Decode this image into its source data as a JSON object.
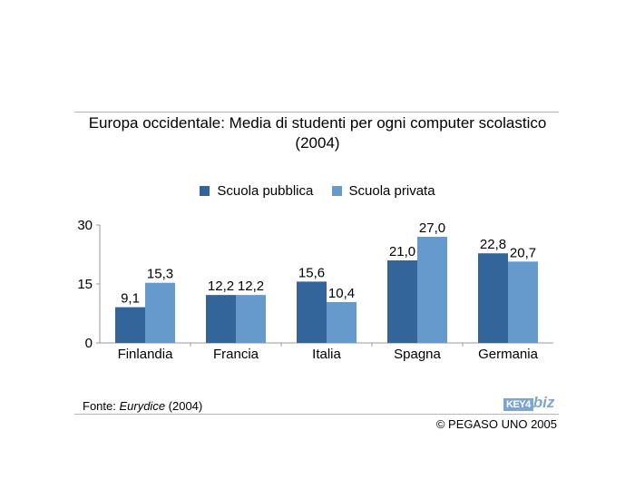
{
  "title": {
    "line1": "Europa occidentale: Media di studenti per ogni computer scolastico",
    "line2": "(2004)"
  },
  "footer": {
    "source_prefix": "Fonte: ",
    "source_name": "Eurydice",
    "source_suffix": " (2004)",
    "copyright": "© PEGASO UNO 2005",
    "logo_text_key": "KEY4",
    "logo_text_biz": "biz"
  },
  "colors": {
    "pubblica": "#33659a",
    "privata": "#6699cc",
    "logo": "#7ea6cc"
  },
  "chart_data": {
    "type": "bar",
    "title": "Europa occidentale: Media di studenti per ogni computer scolastico (2004)",
    "categories": [
      "Finlandia",
      "Francia",
      "Italia",
      "Spagna",
      "Germania"
    ],
    "series": [
      {
        "name": "Scuola pubblica",
        "values": [
          9.1,
          12.2,
          15.6,
          21.0,
          22.8
        ],
        "labels": [
          "9,1",
          "12,2",
          "15,6",
          "21,0",
          "22,8"
        ]
      },
      {
        "name": "Scuola privata",
        "values": [
          15.3,
          12.2,
          10.4,
          27.0,
          20.7
        ],
        "labels": [
          "15,3",
          "12,2",
          "10,4",
          "27,0",
          "20,7"
        ]
      }
    ],
    "y_ticks": [
      0,
      15,
      30
    ],
    "y_tick_labels": [
      "0",
      "15",
      "30"
    ],
    "ylim": [
      0,
      30
    ],
    "xlabel": "",
    "ylabel": "",
    "grid": false,
    "legend_position": "top"
  }
}
